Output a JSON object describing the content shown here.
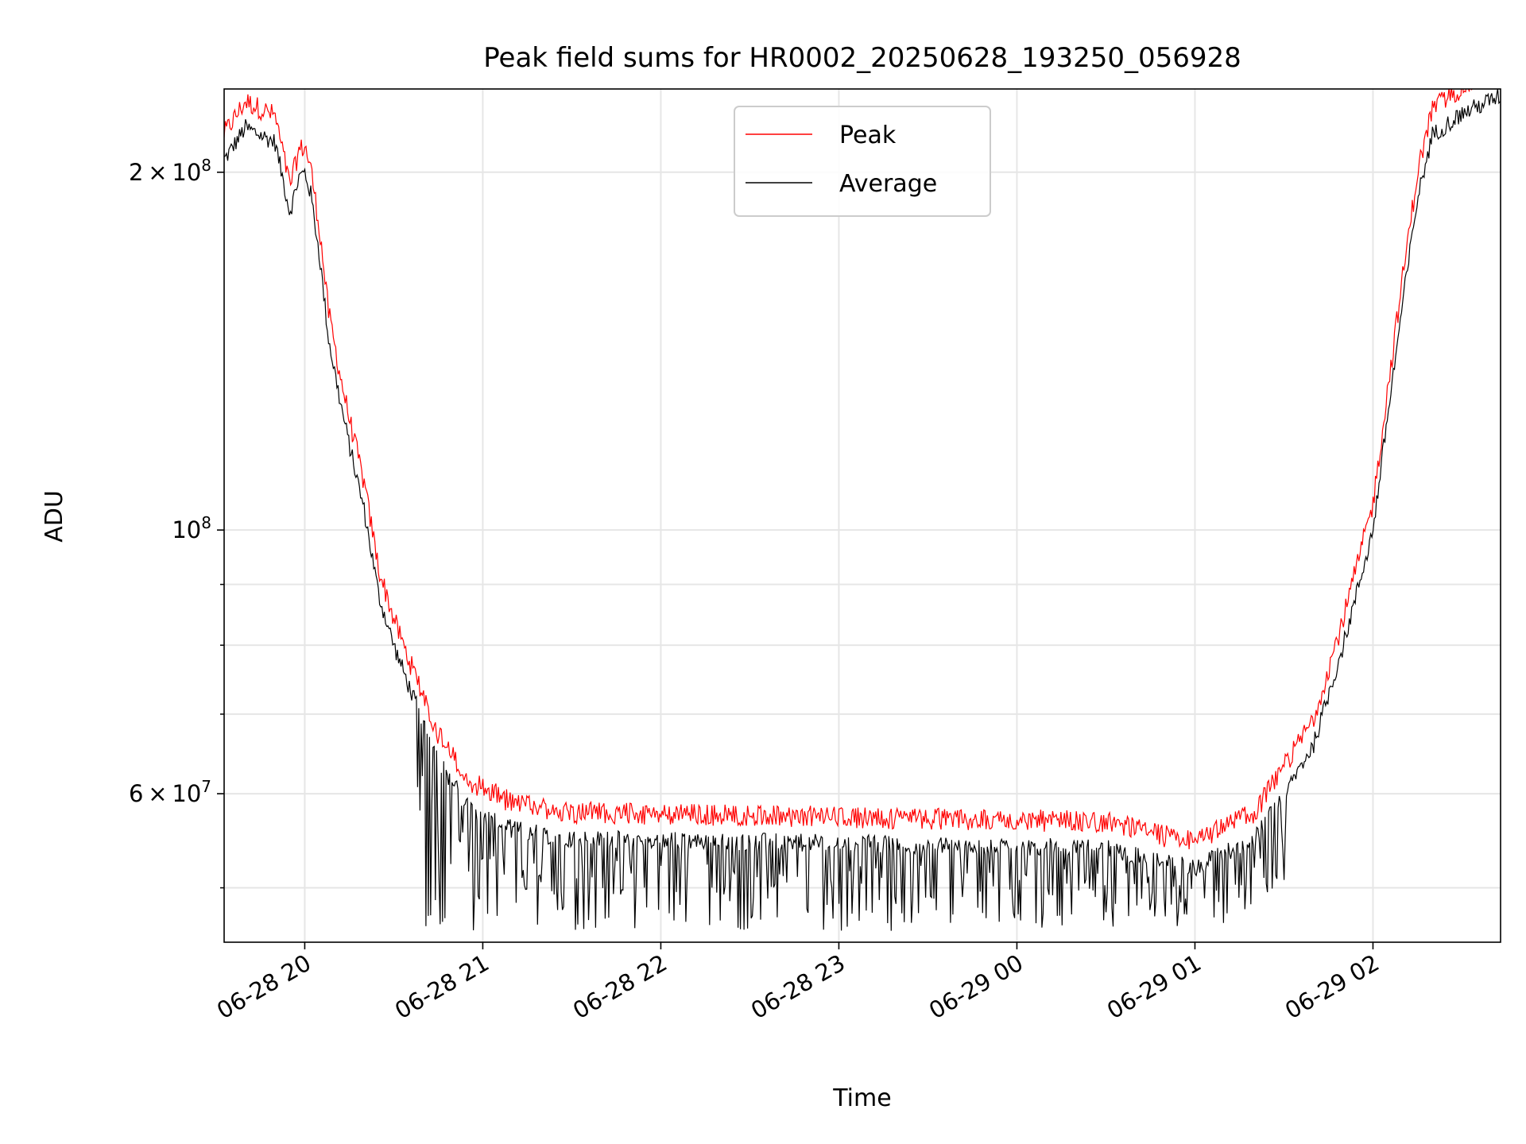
{
  "chart_data": {
    "type": "line",
    "title": "Peak field sums for HR0002_20250628_193250_056928",
    "xlabel": "Time",
    "ylabel": "ADU",
    "yscale": "log",
    "ylim": [
      45000000,
      235000000
    ],
    "xlim": [
      "2025-06-28 19:32:50",
      "2025-06-29 02:43:00"
    ],
    "grid": true,
    "legend_position": "top-center",
    "x_ticks": [
      {
        "t": "2025-06-28 20:00",
        "label": "06-28 20"
      },
      {
        "t": "2025-06-28 21:00",
        "label": "06-28 21"
      },
      {
        "t": "2025-06-28 22:00",
        "label": "06-28 22"
      },
      {
        "t": "2025-06-28 23:00",
        "label": "06-28 23"
      },
      {
        "t": "2025-06-29 00:00",
        "label": "06-29 00"
      },
      {
        "t": "2025-06-29 01:00",
        "label": "06-29 01"
      },
      {
        "t": "2025-06-29 02:00",
        "label": "06-29 02"
      }
    ],
    "y_major_ticks": [
      {
        "v": 60000000,
        "mant": "6 × 10",
        "exp": "7"
      },
      {
        "v": 100000000,
        "mant": "10",
        "exp": "8"
      },
      {
        "v": 200000000,
        "mant": "2 × 10",
        "exp": "8"
      }
    ],
    "y_minor_ticks": [
      50000000,
      70000000,
      80000000,
      90000000
    ],
    "series": [
      {
        "name": "Peak",
        "color": "#ff0000"
      },
      {
        "name": "Average",
        "color": "#000000"
      }
    ],
    "profile": {
      "x": [
        "2025-06-28 19:33",
        "2025-06-28 19:40",
        "2025-06-28 19:50",
        "2025-06-28 19:55",
        "2025-06-28 19:58",
        "2025-06-28 20:00",
        "2025-06-28 20:02",
        "2025-06-28 20:05",
        "2025-06-28 20:08",
        "2025-06-28 20:12",
        "2025-06-28 20:15",
        "2025-06-28 20:20",
        "2025-06-28 20:25",
        "2025-06-28 20:30",
        "2025-06-28 20:35",
        "2025-06-28 20:45",
        "2025-06-28 20:55",
        "2025-06-28 21:10",
        "2025-06-28 21:30",
        "2025-06-29 00:30",
        "2025-06-29 00:50",
        "2025-06-29 01:00",
        "2025-06-29 01:10",
        "2025-06-29 01:20",
        "2025-06-29 01:30",
        "2025-06-29 01:40",
        "2025-06-29 01:50",
        "2025-06-29 02:00",
        "2025-06-29 02:05",
        "2025-06-29 02:10",
        "2025-06-29 02:15",
        "2025-06-29 02:20",
        "2025-06-29 02:30",
        "2025-06-29 02:43"
      ],
      "avg": [
        205000000,
        218000000,
        212000000,
        185000000,
        198000000,
        200000000,
        192000000,
        170000000,
        145000000,
        128000000,
        118000000,
        104000000,
        88000000,
        80000000,
        74000000,
        64000000,
        58500000,
        56000000,
        55000000,
        54000000,
        52500000,
        52000000,
        53500000,
        55000000,
        60000000,
        66000000,
        80000000,
        100000000,
        125000000,
        155000000,
        190000000,
        215000000,
        224000000,
        232000000
      ],
      "peak_offset": 1.03,
      "dip_min": 46000000
    }
  }
}
